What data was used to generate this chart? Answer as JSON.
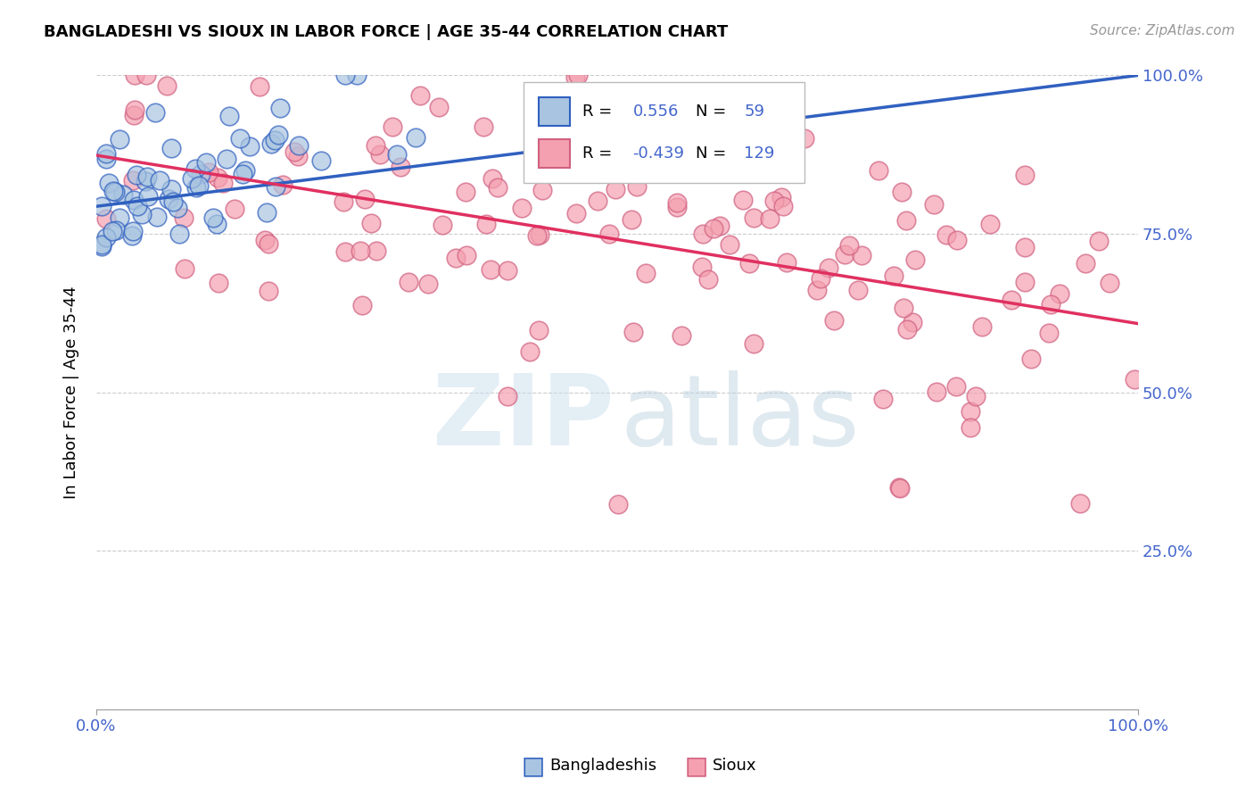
{
  "title": "BANGLADESHI VS SIOUX IN LABOR FORCE | AGE 35-44 CORRELATION CHART",
  "source": "Source: ZipAtlas.com",
  "ylabel": "In Labor Force | Age 35-44",
  "bangladeshi_color": "#a8c4e0",
  "sioux_color": "#f4a0b0",
  "bangladeshi_edge_color": "#3060c0",
  "sioux_edge_color": "#d06080",
  "bangladeshi_line_color": "#3060c0",
  "sioux_line_color": "#e03060",
  "legend_label_bangladeshi": "Bangladeshis",
  "legend_label_sioux": "Sioux",
  "R_bangladeshi": 0.556,
  "N_bangladeshi": 59,
  "R_sioux": -0.439,
  "N_sioux": 129,
  "tick_color": "#4466cc",
  "grid_color": "#cccccc"
}
